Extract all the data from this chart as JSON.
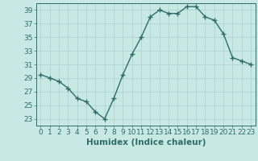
{
  "x": [
    0,
    1,
    2,
    3,
    4,
    5,
    6,
    7,
    8,
    9,
    10,
    11,
    12,
    13,
    14,
    15,
    16,
    17,
    18,
    19,
    20,
    21,
    22,
    23
  ],
  "y": [
    29.5,
    29.0,
    28.5,
    27.5,
    26.0,
    25.5,
    24.0,
    23.0,
    26.0,
    29.5,
    32.5,
    35.0,
    38.0,
    39.0,
    38.5,
    38.5,
    39.5,
    39.5,
    38.0,
    37.5,
    35.5,
    32.0,
    31.5,
    31.0
  ],
  "line_color": "#2e6e66",
  "marker": "+",
  "bg_color": "#c8e8e4",
  "grid_color": "#b0d4d0",
  "xlabel": "Humidex (Indice chaleur)",
  "xlim": [
    -0.5,
    23.5
  ],
  "ylim": [
    22,
    40
  ],
  "yticks": [
    23,
    25,
    27,
    29,
    31,
    33,
    35,
    37,
    39
  ],
  "xticks": [
    0,
    1,
    2,
    3,
    4,
    5,
    6,
    7,
    8,
    9,
    10,
    11,
    12,
    13,
    14,
    15,
    16,
    17,
    18,
    19,
    20,
    21,
    22,
    23
  ],
  "linewidth": 1.0,
  "marker_size": 4,
  "tick_fontsize": 6.5,
  "xlabel_fontsize": 7.5
}
